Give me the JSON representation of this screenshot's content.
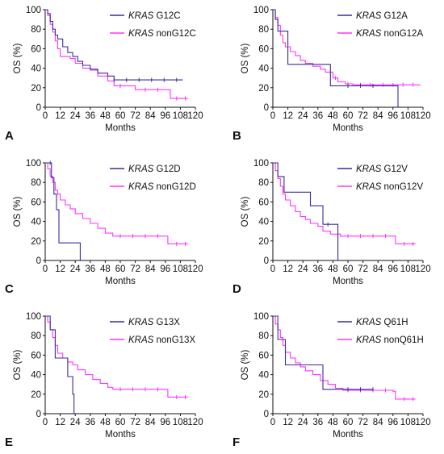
{
  "colors": {
    "mutant": "#3b2b9c",
    "non_mutant": "#ff33ff",
    "axis": "#111111"
  },
  "chart_data": [
    {
      "panel_label": "A",
      "type": "line",
      "xlabel": "Months",
      "ylabel": "OS (%)",
      "xlim": [
        0,
        120
      ],
      "ylim": [
        0,
        100
      ],
      "x_ticks": [
        "0",
        "12",
        "24",
        "36",
        "48",
        "60",
        "72",
        "84",
        "96",
        "108",
        "120"
      ],
      "y_ticks": [
        "0",
        "20",
        "40",
        "60",
        "80",
        "100"
      ],
      "grid": false,
      "legend_position": "top-right",
      "series": [
        {
          "name_italic": "KRAS",
          "name_rest": " G12C",
          "color_key": "mutant",
          "values": [
            [
              0,
              100
            ],
            [
              2,
              96
            ],
            [
              4,
              88
            ],
            [
              6,
              80
            ],
            [
              8,
              74
            ],
            [
              10,
              70
            ],
            [
              14,
              62
            ],
            [
              18,
              56
            ],
            [
              22,
              52
            ],
            [
              26,
              47
            ],
            [
              30,
              43
            ],
            [
              36,
              39
            ],
            [
              42,
              35
            ],
            [
              50,
              32
            ],
            [
              55,
              28
            ],
            [
              110,
              28
            ]
          ],
          "censor_x": [
            55,
            65,
            75,
            85,
            95,
            105
          ]
        },
        {
          "name_italic": "KRAS",
          "name_rest": " nonG12C",
          "color_key": "non_mutant",
          "values": [
            [
              0,
              100
            ],
            [
              2,
              94
            ],
            [
              4,
              85
            ],
            [
              6,
              77
            ],
            [
              8,
              68
            ],
            [
              10,
              60
            ],
            [
              12,
              52
            ],
            [
              16,
              52
            ],
            [
              20,
              50
            ],
            [
              24,
              45
            ],
            [
              30,
              40
            ],
            [
              36,
              38
            ],
            [
              42,
              32
            ],
            [
              50,
              27
            ],
            [
              55,
              22
            ],
            [
              72,
              18
            ],
            [
              96,
              18
            ],
            [
              100,
              9
            ],
            [
              114,
              9
            ]
          ],
          "censor_x": [
            60,
            80,
            90,
            105,
            112
          ]
        }
      ]
    },
    {
      "panel_label": "B",
      "type": "line",
      "xlabel": "Months",
      "ylabel": "OS (%)",
      "xlim": [
        0,
        120
      ],
      "ylim": [
        0,
        100
      ],
      "x_ticks": [
        "0",
        "12",
        "24",
        "36",
        "48",
        "60",
        "72",
        "84",
        "96",
        "108",
        "120"
      ],
      "y_ticks": [
        "0",
        "20",
        "40",
        "60",
        "80",
        "100"
      ],
      "grid": false,
      "legend_position": "top-right",
      "series": [
        {
          "name_italic": "KRAS",
          "name_rest": " G12A",
          "color_key": "mutant",
          "values": [
            [
              0,
              100
            ],
            [
              2,
              90
            ],
            [
              4,
              78
            ],
            [
              10,
              78
            ],
            [
              12,
              44
            ],
            [
              44,
              44
            ],
            [
              46,
              22
            ],
            [
              98,
              22
            ],
            [
              100,
              0
            ]
          ],
          "censor_x": [
            60,
            70,
            80
          ]
        },
        {
          "name_italic": "KRAS",
          "name_rest": " nonG12A",
          "color_key": "non_mutant",
          "values": [
            [
              0,
              100
            ],
            [
              2,
              92
            ],
            [
              4,
              84
            ],
            [
              6,
              74
            ],
            [
              8,
              66
            ],
            [
              10,
              62
            ],
            [
              14,
              57
            ],
            [
              18,
              53
            ],
            [
              22,
              48
            ],
            [
              26,
              45
            ],
            [
              32,
              42
            ],
            [
              38,
              39
            ],
            [
              42,
              36
            ],
            [
              48,
              30
            ],
            [
              52,
              26
            ],
            [
              58,
              24
            ],
            [
              64,
              23
            ],
            [
              118,
              23
            ]
          ],
          "censor_x": [
            50,
            60,
            70,
            78,
            88,
            96,
            104,
            112
          ]
        }
      ]
    },
    {
      "panel_label": "C",
      "type": "line",
      "xlabel": "Months",
      "ylabel": "OS (%)",
      "xlim": [
        0,
        120
      ],
      "ylim": [
        0,
        100
      ],
      "x_ticks": [
        "0",
        "12",
        "24",
        "36",
        "48",
        "60",
        "72",
        "84",
        "96",
        "108",
        "120"
      ],
      "y_ticks": [
        "0",
        "20",
        "40",
        "60",
        "80",
        "100"
      ],
      "grid": false,
      "legend_position": "top-right",
      "series": [
        {
          "name_italic": "KRAS",
          "name_rest": " G12D",
          "color_key": "mutant",
          "values": [
            [
              0,
              100
            ],
            [
              4,
              100
            ],
            [
              5,
              85
            ],
            [
              7,
              68
            ],
            [
              9,
              52
            ],
            [
              11,
              18
            ],
            [
              26,
              18
            ],
            [
              28,
              0
            ]
          ],
          "censor_x": [
            4
          ]
        },
        {
          "name_italic": "KRAS",
          "name_rest": " nonG12D",
          "color_key": "non_mutant",
          "values": [
            [
              0,
              100
            ],
            [
              2,
              94
            ],
            [
              4,
              86
            ],
            [
              6,
              80
            ],
            [
              8,
              72
            ],
            [
              10,
              68
            ],
            [
              12,
              62
            ],
            [
              16,
              57
            ],
            [
              20,
              53
            ],
            [
              24,
              48
            ],
            [
              30,
              43
            ],
            [
              36,
              38
            ],
            [
              42,
              33
            ],
            [
              48,
              28
            ],
            [
              54,
              25
            ],
            [
              96,
              25
            ],
            [
              98,
              17
            ],
            [
              114,
              17
            ]
          ],
          "censor_x": [
            60,
            70,
            80,
            90,
            105,
            112
          ]
        }
      ]
    },
    {
      "panel_label": "D",
      "type": "line",
      "xlabel": "Months",
      "ylabel": "OS (%)",
      "xlim": [
        0,
        120
      ],
      "ylim": [
        0,
        100
      ],
      "x_ticks": [
        "0",
        "12",
        "24",
        "36",
        "48",
        "60",
        "72",
        "84",
        "96",
        "108",
        "120"
      ],
      "y_ticks": [
        "0",
        "20",
        "40",
        "60",
        "80",
        "100"
      ],
      "grid": false,
      "legend_position": "top-right",
      "series": [
        {
          "name_italic": "KRAS",
          "name_rest": " G12V",
          "color_key": "mutant",
          "values": [
            [
              0,
              100
            ],
            [
              3,
              100
            ],
            [
              4,
              86
            ],
            [
              8,
              86
            ],
            [
              9,
              70
            ],
            [
              29,
              70
            ],
            [
              30,
              56
            ],
            [
              39,
              56
            ],
            [
              40,
              37
            ],
            [
              51,
              37
            ],
            [
              52,
              0
            ]
          ],
          "censor_x": [
            44
          ]
        },
        {
          "name_italic": "KRAS",
          "name_rest": " nonG12V",
          "color_key": "non_mutant",
          "values": [
            [
              0,
              100
            ],
            [
              2,
              92
            ],
            [
              4,
              84
            ],
            [
              6,
              76
            ],
            [
              8,
              68
            ],
            [
              10,
              62
            ],
            [
              14,
              56
            ],
            [
              18,
              50
            ],
            [
              22,
              45
            ],
            [
              26,
              42
            ],
            [
              30,
              38
            ],
            [
              36,
              35
            ],
            [
              40,
              30
            ],
            [
              46,
              27
            ],
            [
              54,
              25
            ],
            [
              96,
              25
            ],
            [
              98,
              17
            ],
            [
              114,
              17
            ]
          ],
          "censor_x": [
            60,
            70,
            80,
            90,
            105,
            112
          ]
        }
      ]
    },
    {
      "panel_label": "E",
      "type": "line",
      "xlabel": "Months",
      "ylabel": "OS (%)",
      "xlim": [
        0,
        120
      ],
      "ylim": [
        0,
        100
      ],
      "x_ticks": [
        "0",
        "12",
        "24",
        "36",
        "48",
        "60",
        "72",
        "84",
        "96",
        "108",
        "120"
      ],
      "y_ticks": [
        "0",
        "20",
        "40",
        "60",
        "80",
        "100"
      ],
      "grid": false,
      "legend_position": "top-right",
      "series": [
        {
          "name_italic": "KRAS",
          "name_rest": " G13X",
          "color_key": "mutant",
          "values": [
            [
              0,
              100
            ],
            [
              3,
              100
            ],
            [
              4,
              86
            ],
            [
              6,
              86
            ],
            [
              8,
              57
            ],
            [
              15,
              57
            ],
            [
              18,
              38
            ],
            [
              21,
              38
            ],
            [
              22,
              20
            ],
            [
              23,
              0
            ]
          ],
          "censor_x": []
        },
        {
          "name_italic": "KRAS",
          "name_rest": " nonG13X",
          "color_key": "non_mutant",
          "values": [
            [
              0,
              100
            ],
            [
              2,
              94
            ],
            [
              4,
              86
            ],
            [
              6,
              78
            ],
            [
              8,
              70
            ],
            [
              10,
              62
            ],
            [
              14,
              57
            ],
            [
              18,
              53
            ],
            [
              22,
              50
            ],
            [
              26,
              45
            ],
            [
              32,
              40
            ],
            [
              38,
              35
            ],
            [
              44,
              31
            ],
            [
              50,
              27
            ],
            [
              54,
              25
            ],
            [
              96,
              25
            ],
            [
              98,
              17
            ],
            [
              114,
              17
            ]
          ],
          "censor_x": [
            60,
            70,
            80,
            90,
            105,
            112
          ]
        }
      ]
    },
    {
      "panel_label": "F",
      "type": "line",
      "xlabel": "Months",
      "ylabel": "OS (%)",
      "xlim": [
        0,
        120
      ],
      "ylim": [
        0,
        100
      ],
      "x_ticks": [
        "0",
        "12",
        "24",
        "36",
        "48",
        "60",
        "72",
        "84",
        "96",
        "108",
        "120"
      ],
      "y_ticks": [
        "0",
        "20",
        "40",
        "60",
        "80",
        "100"
      ],
      "grid": false,
      "legend_position": "top-right",
      "series": [
        {
          "name_italic": "KRAS",
          "name_rest": " Q61H",
          "color_key": "mutant",
          "values": [
            [
              0,
              100
            ],
            [
              3,
              100
            ],
            [
              4,
              76
            ],
            [
              8,
              76
            ],
            [
              10,
              50
            ],
            [
              36,
              50
            ],
            [
              40,
              25
            ],
            [
              80,
              25
            ]
          ],
          "censor_x": [
            60,
            70,
            80
          ]
        },
        {
          "name_italic": "KRAS",
          "name_rest": " nonQ61H",
          "color_key": "non_mutant",
          "values": [
            [
              0,
              100
            ],
            [
              2,
              92
            ],
            [
              4,
              86
            ],
            [
              6,
              78
            ],
            [
              8,
              70
            ],
            [
              10,
              63
            ],
            [
              14,
              57
            ],
            [
              18,
              52
            ],
            [
              22,
              48
            ],
            [
              26,
              44
            ],
            [
              32,
              40
            ],
            [
              38,
              34
            ],
            [
              44,
              30
            ],
            [
              50,
              26
            ],
            [
              56,
              24
            ],
            [
              96,
              23
            ],
            [
              98,
              15
            ],
            [
              114,
              15
            ]
          ],
          "censor_x": [
            60,
            70,
            80,
            90,
            105,
            112
          ]
        }
      ]
    }
  ]
}
